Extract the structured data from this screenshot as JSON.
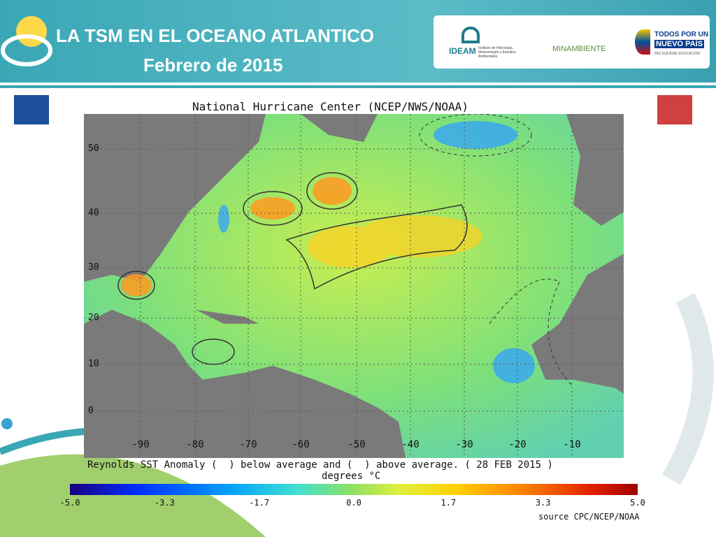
{
  "header": {
    "title": "LA TSM EN EL OCEANO ATLANTICO",
    "subtitle": "Febrero de 2015"
  },
  "logos": {
    "ideam": "IDEAM",
    "ideam_full": "Instituto de Hidrología, Meteorología y Estudios Ambientales",
    "minambiente": "MINAMBIENTE",
    "gov_line1": "TODOS POR UN",
    "gov_line2": "NUEVO PAÍS",
    "gov_motto": "PAZ EQUIDAD EDUCACIÓN"
  },
  "map": {
    "title": "National Hurricane Center (NCEP/NWS/NOAA)",
    "latitudes": [
      "50",
      "40",
      "30",
      "20",
      "10",
      "0"
    ],
    "longitudes": [
      "-90",
      "-80",
      "-70",
      "-60",
      "-50",
      "-40",
      "-30",
      "-20",
      "-10"
    ],
    "caption": "Reynolds SST Anomaly (  ) below average and (  ) above average. ( 28 FEB 2015 )",
    "units": "degrees °C",
    "colorbar_ticks": [
      "-5.0",
      "-3.3",
      "-1.7",
      "0.0",
      "1.7",
      "3.3",
      "5.0"
    ],
    "source": "source  CPC/NCEP/NOAA"
  }
}
